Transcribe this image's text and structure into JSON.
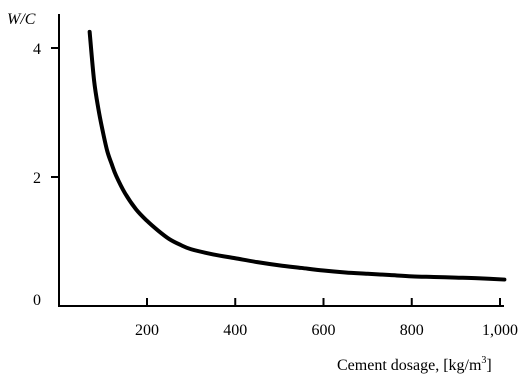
{
  "chart_data": {
    "type": "line",
    "title": "",
    "ylabel": "W/C",
    "xlabel": "Cement dosage, [kg/m³]",
    "xlabel_parts": {
      "text": "Cement dosage, [kg/m",
      "superscript": "3",
      "close": "]"
    },
    "xlim": [
      0,
      1050
    ],
    "ylim": [
      0,
      4.5
    ],
    "x_ticks": [
      200,
      400,
      600,
      800,
      1000
    ],
    "x_tick_labels": [
      "200",
      "400",
      "600",
      "800",
      "1,000"
    ],
    "y_ticks": [
      0,
      2,
      4
    ],
    "y_tick_labels": [
      "0",
      "2",
      "4"
    ],
    "grid": false,
    "series": [
      {
        "x": [
          70,
          80,
          90,
          100,
          110,
          120,
          130,
          150,
          175,
          200,
          225,
          250,
          275,
          300,
          350,
          400,
          450,
          500,
          550,
          600,
          650,
          700,
          750,
          800,
          850,
          900,
          950,
          1010
        ],
        "y": [
          4.25,
          3.5,
          3.05,
          2.7,
          2.4,
          2.2,
          2.02,
          1.75,
          1.5,
          1.32,
          1.17,
          1.04,
          0.95,
          0.88,
          0.8,
          0.74,
          0.68,
          0.63,
          0.59,
          0.55,
          0.52,
          0.5,
          0.48,
          0.46,
          0.45,
          0.44,
          0.43,
          0.41
        ]
      }
    ]
  }
}
